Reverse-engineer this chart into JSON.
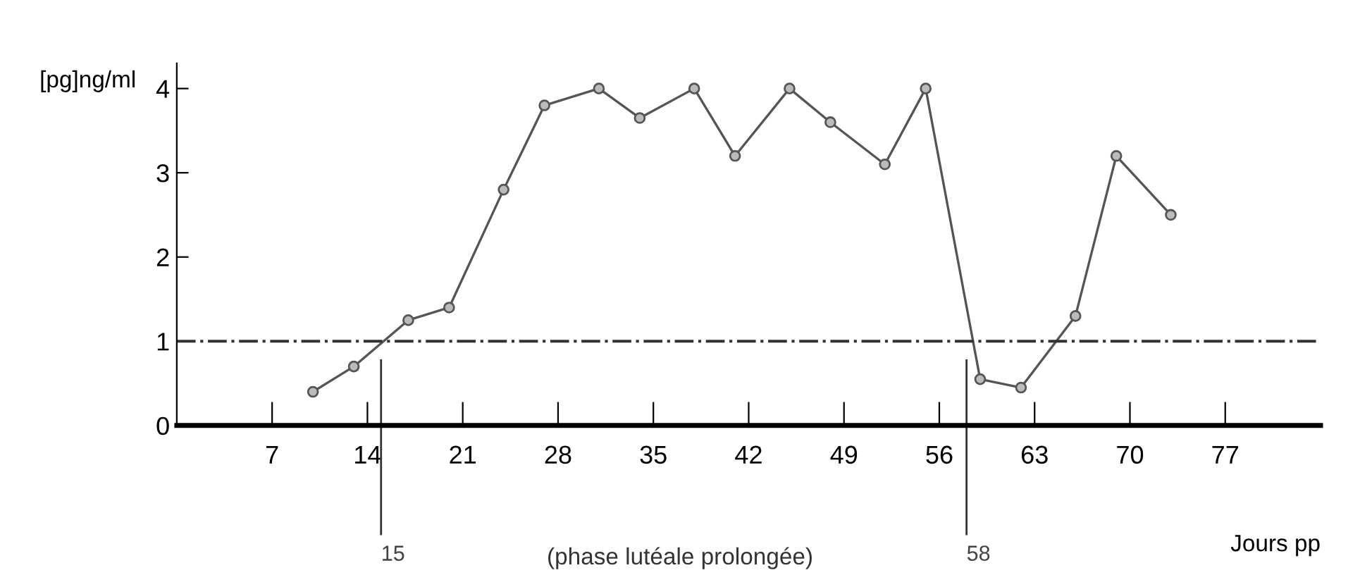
{
  "chart_data": {
    "type": "line",
    "ylabel": "[pg]ng/ml",
    "xlabel": "Jours pp",
    "x": [
      10,
      13,
      17,
      20,
      24,
      27,
      31,
      34,
      38,
      41,
      45,
      48,
      52,
      55,
      59,
      62,
      66,
      69,
      73
    ],
    "series": [
      {
        "color": "#555555",
        "values": [
          0.4,
          0.7,
          1.25,
          1.4,
          2.8,
          3.8,
          4.0,
          3.65,
          4.0,
          3.2,
          4.0,
          3.6,
          3.1,
          4.0,
          0.55,
          0.45,
          1.3,
          3.2,
          2.5
        ]
      }
    ],
    "xlim": [
      0,
      84
    ],
    "xticks": [
      7,
      14,
      21,
      28,
      35,
      42,
      49,
      56,
      63,
      70,
      77
    ],
    "ylim": [
      0,
      4.3
    ],
    "yticks": [
      0,
      1,
      2,
      3,
      4
    ],
    "ref_lines": [
      {
        "axis": "y",
        "value": 1,
        "line_style": "dashdot",
        "color": "#333333"
      },
      {
        "axis": "x",
        "value": 15,
        "label": "15",
        "color": "#333333"
      },
      {
        "axis": "x",
        "value": 58,
        "label": "58",
        "color": "#333333"
      }
    ],
    "annotations": [
      "(phase lutéale prolongée)"
    ],
    "marker": "circle",
    "line_style": "solid",
    "grid": false,
    "legend": false
  }
}
